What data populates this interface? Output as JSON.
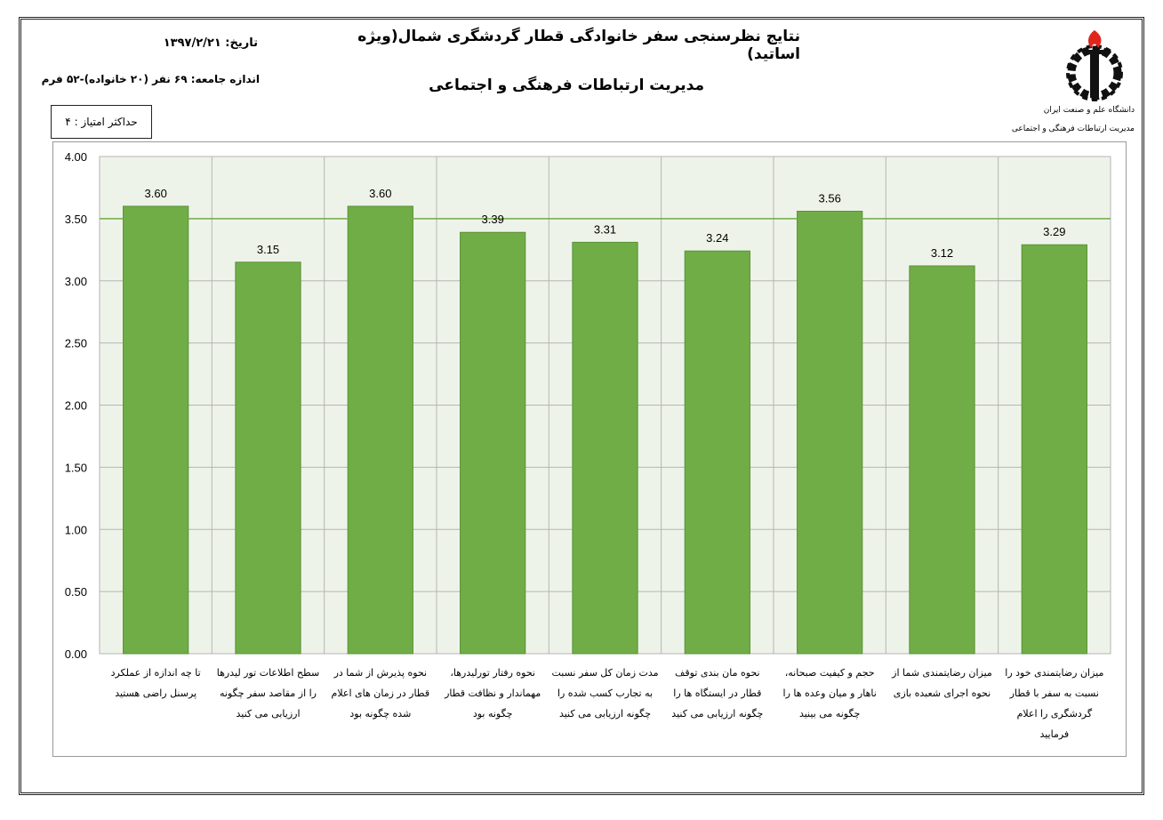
{
  "header": {
    "title": "نتایج نظرسنجی سفر خانوادگی قطار گردشگری شمال(ویژه اساتید)",
    "subtitle": "مدیریت ارتباطات فرهنگی و اجتماعی",
    "date": "تاریخ: ۱۳۹۷/۲/۲۱",
    "sample_size": "اندازه جامعه: ۶۹ نفر (۲۰ خانواده)-۵۲ فرم",
    "max_score": "حداکثر امتیاز : ۴"
  },
  "logo": {
    "icon": "university-gear-torch-logo",
    "line1": "دانشگاه علم و صنعت ایران",
    "line2": "مدیریت ارتباطات فرهنگی و اجتماعی"
  },
  "colors": {
    "bar": "#70ad47",
    "bar_border": "#5a9236",
    "plot_bg": "#eef3ea",
    "grid": "#b5b5b5",
    "reference_line": "#70ad47"
  },
  "chart_data": {
    "type": "bar",
    "title": "",
    "xlabel": "",
    "ylabel": "",
    "ylim": [
      0,
      4
    ],
    "yticks": [
      "0.00",
      "0.50",
      "1.00",
      "1.50",
      "2.00",
      "2.50",
      "3.00",
      "3.50",
      "4.00"
    ],
    "reference_line": 3.5,
    "grid": true,
    "legend": "none",
    "categories": [
      [
        "تا چه اندازه از عملکرد",
        "پرسنل راضی هستید"
      ],
      [
        "سطح اطلاعات تور لیدرها",
        "را از مقاصد سفر چگونه",
        "ارزیابی می کنید"
      ],
      [
        "نحوه پذیرش از شما در",
        "قطار در زمان های اعلام",
        "شده چگونه بود"
      ],
      [
        "نحوه رفتار تورلیدرها،",
        "مهماندار و نظافت قطار",
        "چگونه بود"
      ],
      [
        "مدت زمان کل سفر نسبت",
        "به تجارب کسب شده را",
        "چگونه ارزیابی می کنید"
      ],
      [
        "نحوه مان بندی توقف",
        "قطار در ایستگاه ها را",
        "چگونه ارزیابی می کنید"
      ],
      [
        "حجم و کیفیت صبحانه،",
        "ناهار و میان وعده ها را",
        "چگونه می بینید"
      ],
      [
        "میزان رضایتمندی شما از",
        "نحوه اجرای شعبده بازی"
      ],
      [
        "میزان رضایتمندی خود را",
        "نسبت به سفر با قطار",
        "گردشگری را اعلام",
        "فرمایید"
      ]
    ],
    "values": [
      3.6,
      3.15,
      3.6,
      3.39,
      3.31,
      3.24,
      3.56,
      3.12,
      3.29
    ],
    "labels": [
      "3.60",
      "3.15",
      "3.60",
      "3.39",
      "3.31",
      "3.24",
      "3.56",
      "3.12",
      "3.29"
    ]
  }
}
